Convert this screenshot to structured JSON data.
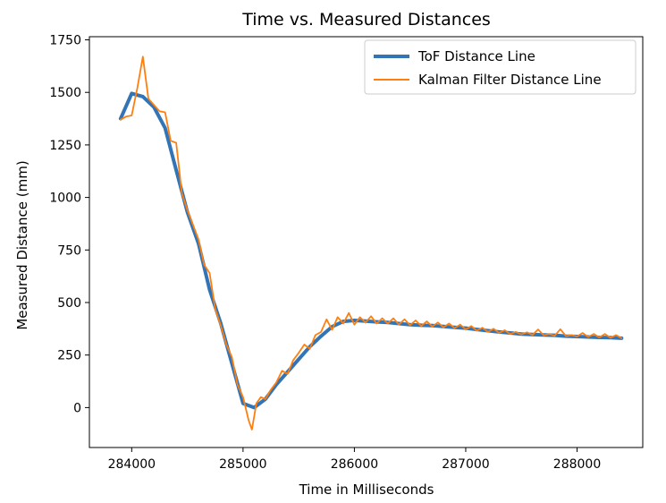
{
  "chart_data": {
    "type": "line",
    "title": "Time vs. Measured Distances",
    "xlabel": "Time in Milliseconds",
    "ylabel": "Measured Distance (mm)",
    "xlim": [
      283620,
      288590
    ],
    "ylim": [
      -190,
      1765
    ],
    "xticks": [
      284000,
      285000,
      286000,
      287000,
      288000
    ],
    "xtick_labels": [
      "284000",
      "285000",
      "286000",
      "287000",
      "288000"
    ],
    "yticks": [
      0,
      250,
      500,
      750,
      1000,
      1250,
      1500,
      1750
    ],
    "ytick_labels": [
      "0",
      "250",
      "500",
      "750",
      "1000",
      "1250",
      "1500",
      "1750"
    ],
    "grid": false,
    "legend_position": "top-right",
    "series": [
      {
        "name": "ToF Distance Line",
        "color": "#3274b5",
        "x": [
          283900,
          284000,
          284100,
          284200,
          284300,
          284400,
          284500,
          284600,
          284700,
          284800,
          284900,
          285000,
          285100,
          285200,
          285300,
          285400,
          285500,
          285600,
          285700,
          285800,
          285900,
          286000,
          286100,
          286200,
          286300,
          286400,
          286500,
          286600,
          286700,
          286800,
          286900,
          287000,
          287100,
          287200,
          287300,
          287400,
          287500,
          287600,
          287700,
          287800,
          287900,
          288000,
          288100,
          288200,
          288300,
          288400
        ],
        "y": [
          1375,
          1495,
          1480,
          1430,
          1330,
          1130,
          930,
          780,
          560,
          400,
          210,
          20,
          0,
          40,
          110,
          170,
          230,
          290,
          340,
          385,
          410,
          415,
          412,
          408,
          405,
          400,
          395,
          392,
          390,
          386,
          382,
          378,
          372,
          366,
          360,
          355,
          350,
          348,
          346,
          344,
          340,
          338,
          336,
          334,
          333,
          330
        ]
      },
      {
        "name": "Kalman Filter Distance Line",
        "color": "#ff7f0e",
        "x": [
          283900,
          283950,
          284000,
          284050,
          284100,
          284150,
          284200,
          284250,
          284300,
          284350,
          284400,
          284450,
          284500,
          284550,
          284600,
          284650,
          284700,
          284750,
          284800,
          284850,
          284900,
          284950,
          285000,
          285050,
          285080,
          285120,
          285160,
          285200,
          285250,
          285300,
          285350,
          285400,
          285450,
          285500,
          285550,
          285600,
          285650,
          285700,
          285750,
          285800,
          285850,
          285900,
          285950,
          286000,
          286050,
          286100,
          286150,
          286200,
          286250,
          286300,
          286350,
          286400,
          286450,
          286500,
          286550,
          286600,
          286650,
          286700,
          286750,
          286800,
          286850,
          286900,
          286950,
          287000,
          287050,
          287100,
          287150,
          287200,
          287250,
          287300,
          287350,
          287400,
          287450,
          287500,
          287550,
          287600,
          287650,
          287700,
          287750,
          287800,
          287850,
          287900,
          287950,
          288000,
          288050,
          288100,
          288150,
          288200,
          288250,
          288300,
          288350,
          288400
        ],
        "y": [
          1370,
          1385,
          1390,
          1520,
          1670,
          1470,
          1440,
          1410,
          1405,
          1270,
          1260,
          1020,
          940,
          870,
          800,
          680,
          640,
          470,
          390,
          300,
          240,
          110,
          50,
          -60,
          -105,
          20,
          50,
          40,
          85,
          120,
          175,
          160,
          225,
          260,
          300,
          280,
          345,
          360,
          420,
          370,
          430,
          400,
          450,
          395,
          430,
          405,
          435,
          400,
          425,
          400,
          425,
          395,
          420,
          392,
          415,
          388,
          410,
          386,
          405,
          382,
          400,
          378,
          395,
          372,
          388,
          366,
          380,
          360,
          375,
          355,
          368,
          350,
          360,
          348,
          358,
          346,
          372,
          344,
          350,
          342,
          373,
          340,
          345,
          338,
          355,
          336,
          350,
          334,
          350,
          332,
          345,
          330
        ]
      }
    ]
  }
}
